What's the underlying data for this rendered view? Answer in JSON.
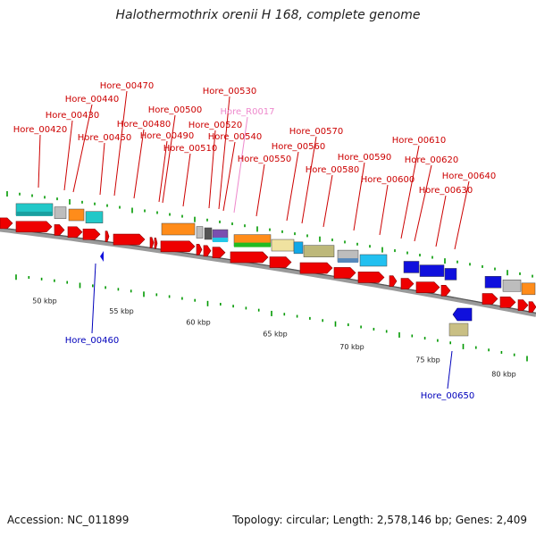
{
  "title": "Halothermothrix orenii H 168, complete genome",
  "footer": {
    "accession": "Accession: NC_011899",
    "summary": "Topology: circular; Length: 2,578,146 bp; Genes: 2,409"
  },
  "colors": {
    "cds_forward": "#ee0000",
    "cds_reverse": "#1010dd",
    "label_forward": "#cc0000",
    "label_reverse": "#0000bb",
    "label_rna": "#ee88cc",
    "backbone": "#777777",
    "ticks": "#009900"
  },
  "scale_labels": [
    "50 kbp",
    "55 kbp",
    "60 kbp",
    "65 kbp",
    "70 kbp",
    "75 kbp",
    "80 kbp"
  ],
  "gene_labels": [
    {
      "text": "Hore_00420",
      "strand": "forward"
    },
    {
      "text": "Hore_00430",
      "strand": "forward"
    },
    {
      "text": "Hore_00440",
      "strand": "forward"
    },
    {
      "text": "Hore_00450",
      "strand": "forward"
    },
    {
      "text": "Hore_00460",
      "strand": "reverse"
    },
    {
      "text": "Hore_00470",
      "strand": "forward"
    },
    {
      "text": "Hore_00480",
      "strand": "forward"
    },
    {
      "text": "Hore_00490",
      "strand": "forward"
    },
    {
      "text": "Hore_00500",
      "strand": "forward"
    },
    {
      "text": "Hore_00510",
      "strand": "forward"
    },
    {
      "text": "Hore_00520",
      "strand": "forward"
    },
    {
      "text": "Hore_00530",
      "strand": "forward"
    },
    {
      "text": "Hore_R0017",
      "strand": "rna"
    },
    {
      "text": "Hore_00540",
      "strand": "forward"
    },
    {
      "text": "Hore_00550",
      "strand": "forward"
    },
    {
      "text": "Hore_00560",
      "strand": "forward"
    },
    {
      "text": "Hore_00570",
      "strand": "forward"
    },
    {
      "text": "Hore_00580",
      "strand": "forward"
    },
    {
      "text": "Hore_00590",
      "strand": "forward"
    },
    {
      "text": "Hore_00600",
      "strand": "forward"
    },
    {
      "text": "Hore_00610",
      "strand": "forward"
    },
    {
      "text": "Hore_00620",
      "strand": "forward"
    },
    {
      "text": "Hore_00630",
      "strand": "forward"
    },
    {
      "text": "Hore_00640",
      "strand": "forward"
    },
    {
      "text": "Hore_00650",
      "strand": "reverse"
    }
  ]
}
